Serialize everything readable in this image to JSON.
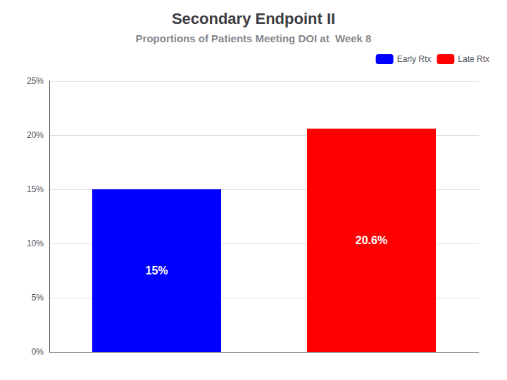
{
  "chart_data": {
    "type": "bar",
    "title": "Secondary Endpoint II",
    "subtitle": "Proportions of Patients Meeting DOI at  Week 8",
    "categories": [
      "Early Rtx",
      "Late Rtx"
    ],
    "values": [
      15.0,
      20.6
    ],
    "value_labels": [
      "15%",
      "20.6%"
    ],
    "data_labels": true,
    "colors": [
      "#0000FF",
      "#FF0000"
    ],
    "ylim": [
      0,
      25
    ],
    "yticks": [
      {
        "value": 0,
        "label": "0%"
      },
      {
        "value": 5,
        "label": "5%"
      },
      {
        "value": 10,
        "label": "10%"
      },
      {
        "value": 15,
        "label": "15%"
      },
      {
        "value": 20,
        "label": "20%"
      },
      {
        "value": 25,
        "label": "25%"
      }
    ],
    "grid": true,
    "legend": "upper right",
    "tick_labels": "y"
  }
}
